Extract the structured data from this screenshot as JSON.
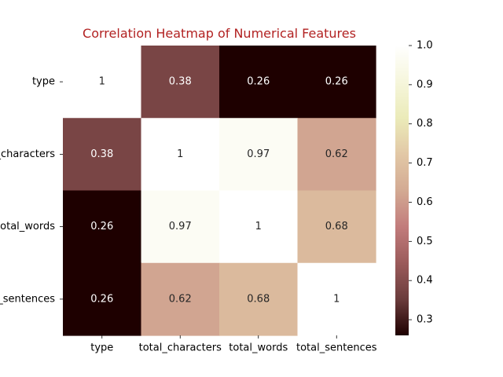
{
  "chart_data": {
    "type": "heatmap",
    "title": "Correlation Heatmap of Numerical Features",
    "row_labels": [
      "type",
      "total_characters",
      "total_words",
      "total_sentences"
    ],
    "col_labels": [
      "type",
      "total_characters",
      "total_words",
      "total_sentences"
    ],
    "values": [
      [
        1,
        0.38,
        0.26,
        0.26
      ],
      [
        0.38,
        1,
        0.97,
        0.62
      ],
      [
        0.26,
        0.97,
        1,
        0.68
      ],
      [
        0.26,
        0.62,
        0.68,
        1
      ]
    ],
    "value_labels": [
      [
        "1",
        "0.38",
        "0.26",
        "0.26"
      ],
      [
        "0.38",
        "1",
        "0.97",
        "0.62"
      ],
      [
        "0.26",
        "0.97",
        "1",
        "0.68"
      ],
      [
        "0.26",
        "0.62",
        "0.68",
        "1"
      ]
    ],
    "colorbar": {
      "min": 0.26,
      "max": 1.0,
      "ticks": [
        0.3,
        0.4,
        0.5,
        0.6,
        0.7,
        0.8,
        0.9,
        1.0
      ],
      "tick_labels": [
        "0.3",
        "0.4",
        "0.5",
        "0.6",
        "0.7",
        "0.8",
        "0.9",
        "1.0"
      ]
    },
    "colormap": "pink",
    "colormap_stops": [
      "#1e0000",
      "#6b3c3c",
      "#9b5b5b",
      "#c27c7c",
      "#d3aa93",
      "#e2c8a6",
      "#ebebb9",
      "#f6f6dc",
      "#ffffff"
    ]
  }
}
